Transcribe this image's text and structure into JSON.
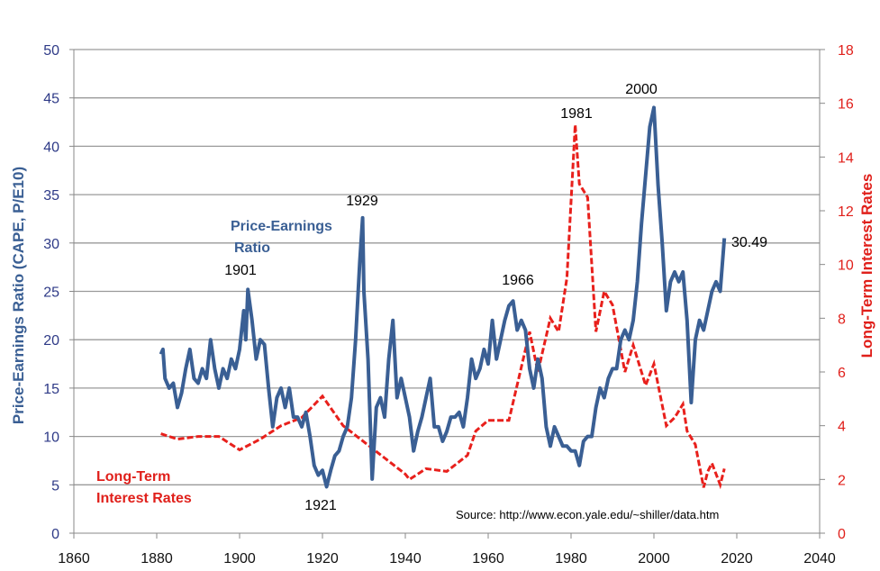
{
  "chart_data": {
    "type": "line",
    "xlabel": "",
    "ylabel_left": "Price-Earnings Ratio (CAPE, P/E10)",
    "ylabel_right": "Long-Term Interest Rates",
    "xlim": [
      1860,
      2040
    ],
    "ylim_left": [
      0,
      50
    ],
    "ylim_right": [
      0,
      18
    ],
    "x_ticks": [
      "1860",
      "1880",
      "1900",
      "1920",
      "1940",
      "1960",
      "1980",
      "2000",
      "2020",
      "2040"
    ],
    "y_ticks_left": [
      "0",
      "5",
      "10",
      "15",
      "20",
      "25",
      "30",
      "35",
      "40",
      "45",
      "50"
    ],
    "y_ticks_right": [
      "0",
      "2",
      "4",
      "6",
      "8",
      "10",
      "12",
      "14",
      "16",
      "18"
    ],
    "grid": "horizontal",
    "colors": {
      "pe": "#3a5f94",
      "rates": "#e8201c",
      "left_axis": "#2e3a87",
      "right_axis": "#e0201b"
    },
    "series": [
      {
        "name": "Price-Earnings Ratio",
        "axis": "left",
        "style": "solid",
        "x": [
          1881,
          1881.5,
          1882,
          1883,
          1884,
          1885,
          1886,
          1887,
          1888,
          1889,
          1890,
          1891,
          1892,
          1893,
          1894,
          1895,
          1896,
          1897,
          1898,
          1899,
          1900,
          1901,
          1901.5,
          1902,
          1903,
          1904,
          1905,
          1906,
          1907,
          1908,
          1909,
          1910,
          1911,
          1912,
          1913,
          1914,
          1915,
          1916,
          1917,
          1918,
          1919,
          1920,
          1921,
          1922,
          1923,
          1924,
          1925,
          1926,
          1927,
          1928,
          1929,
          1929.7,
          1930,
          1931,
          1932,
          1933,
          1934,
          1935,
          1936,
          1937,
          1938,
          1939,
          1940,
          1941,
          1942,
          1943,
          1944,
          1945,
          1946,
          1947,
          1948,
          1949,
          1950,
          1951,
          1952,
          1953,
          1954,
          1955,
          1956,
          1957,
          1958,
          1959,
          1960,
          1961,
          1962,
          1963,
          1964,
          1965,
          1966,
          1967,
          1968,
          1969,
          1970,
          1971,
          1972,
          1973,
          1974,
          1975,
          1976,
          1977,
          1978,
          1979,
          1980,
          1981,
          1982,
          1983,
          1984,
          1985,
          1986,
          1987,
          1988,
          1989,
          1990,
          1991,
          1992,
          1993,
          1994,
          1995,
          1996,
          1997,
          1998,
          1999,
          2000,
          2000.5,
          2001,
          2002,
          2003,
          2004,
          2005,
          2006,
          2007,
          2008,
          2009,
          2010,
          2011,
          2012,
          2013,
          2014,
          2015,
          2016,
          2017
        ],
        "y": [
          18.5,
          19,
          16,
          15,
          15.5,
          13,
          14.5,
          17,
          19,
          16,
          15.5,
          17,
          16,
          20,
          17,
          15,
          17,
          16,
          18,
          17,
          19,
          23,
          20,
          25.2,
          22,
          18,
          20,
          19.5,
          15,
          11,
          14,
          15,
          13,
          15,
          12,
          12,
          11,
          12.5,
          10,
          7,
          6,
          6.5,
          4.8,
          6.5,
          8,
          8.5,
          10,
          11,
          14,
          20,
          28,
          32.6,
          25,
          18,
          5.6,
          13,
          14,
          12,
          18,
          22,
          14,
          16,
          14,
          12,
          8.5,
          10.5,
          12,
          14,
          16,
          11,
          11,
          9.5,
          10.5,
          12,
          12,
          12.5,
          11,
          14,
          18,
          16,
          17,
          19,
          17.5,
          22,
          18,
          20,
          22,
          23.5,
          24,
          21,
          22,
          21,
          17,
          15,
          18,
          16,
          11,
          9,
          11,
          10,
          9,
          9,
          8.5,
          8.5,
          7,
          9.5,
          10,
          10,
          13,
          15,
          14,
          16,
          17,
          17,
          20,
          21,
          20,
          22,
          26,
          32,
          37,
          42,
          44,
          40,
          36,
          30,
          23,
          26,
          27,
          26,
          27,
          22,
          13.5,
          20,
          22,
          21,
          23,
          25,
          26,
          25,
          30.49
        ]
      },
      {
        "name": "Long-Term Interest Rates",
        "axis": "right",
        "style": "dashed",
        "x": [
          1881,
          1885,
          1890,
          1895,
          1900,
          1905,
          1910,
          1915,
          1920,
          1925,
          1930,
          1935,
          1940,
          1941,
          1945,
          1950,
          1955,
          1957,
          1960,
          1965,
          1970,
          1972,
          1975,
          1977,
          1979,
          1981,
          1982,
          1984,
          1986,
          1988,
          1990,
          1993,
          1995,
          1998,
          2000,
          2003,
          2005,
          2007,
          2008,
          2010,
          2012,
          2013,
          2014,
          2016,
          2017
        ],
        "y": [
          3.7,
          3.5,
          3.6,
          3.6,
          3.1,
          3.5,
          4,
          4.3,
          5.1,
          4,
          3.4,
          2.8,
          2.2,
          2.0,
          2.4,
          2.3,
          2.9,
          3.8,
          4.2,
          4.2,
          7.5,
          6,
          8,
          7.5,
          9.5,
          15.2,
          13,
          12.5,
          7.5,
          9,
          8.5,
          6,
          7,
          5.5,
          6.3,
          4,
          4.3,
          4.8,
          3.8,
          3.3,
          1.7,
          2.3,
          2.6,
          1.8,
          2.4
        ]
      }
    ],
    "annotations": [
      "1901",
      "1921",
      "1929",
      "1966",
      "1981",
      "2000",
      "30.49"
    ],
    "labels": {
      "pe_line1": "Price-Earnings",
      "pe_line2": "Ratio",
      "rates_line1": "Long-Term",
      "rates_line2": "Interest Rates"
    },
    "source": "Source: http://www.econ.yale.edu/~shiller/data.htm"
  }
}
